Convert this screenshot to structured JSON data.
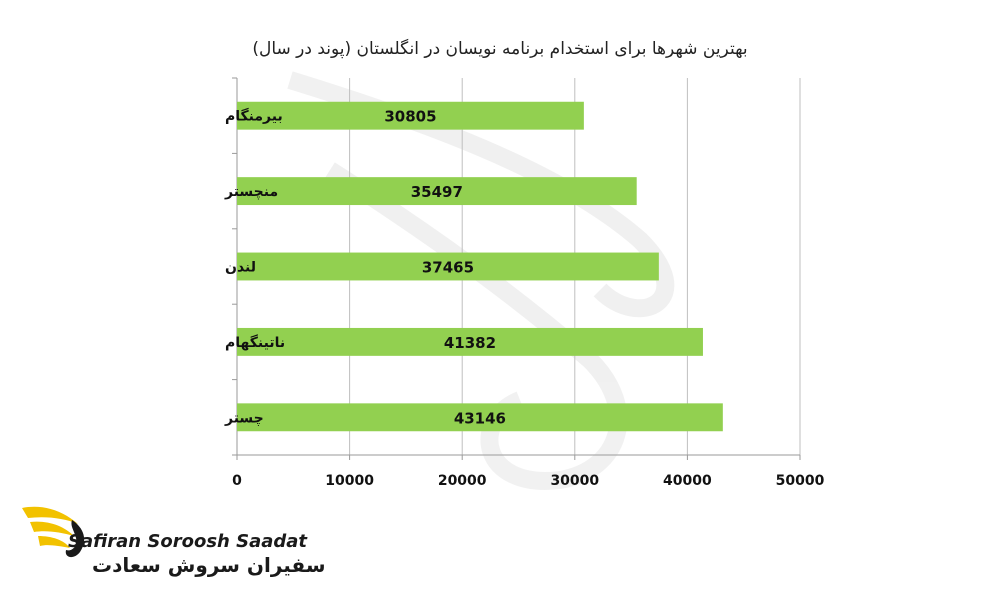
{
  "chart_data": {
    "type": "bar",
    "orientation": "horizontal",
    "title": "بهترین شهرها برای استخدام برنامه نویسان در انگلستان (پوند در سال)",
    "categories": [
      "بیرمنگام",
      "منچستر",
      "لندن",
      "ناتینگهام",
      "چستر"
    ],
    "values": [
      30805,
      35497,
      37465,
      41382,
      43146
    ],
    "data_labels": [
      "30805",
      "35497",
      "37465",
      "41382",
      "43146"
    ],
    "xlim": [
      0,
      50000
    ],
    "xticks": [
      0,
      10000,
      20000,
      30000,
      40000,
      50000
    ],
    "xtick_labels": [
      "0",
      "10000",
      "20000",
      "30000",
      "40000",
      "50000"
    ],
    "grid": true,
    "legend": "none",
    "bar_color": "#92d050"
  },
  "brand": {
    "name_en": "Safiran Soroosh Saadat",
    "name_fa": "سفیران سروش سعادت",
    "accent_color": "#f2c200",
    "icon": "eagle-logo-icon"
  }
}
